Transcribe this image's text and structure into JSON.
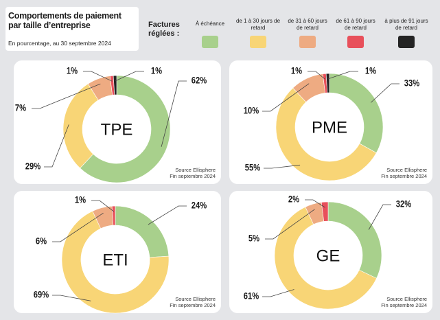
{
  "title": "Comportements de paiement par taille d’entreprise",
  "subtitle": "En pourcentage, au 30 septembre 2024",
  "legend": {
    "title": "Factures réglées :",
    "items": [
      {
        "name": "À échéance",
        "color": "#a8d08c"
      },
      {
        "name": "de 1 à 30 jours de retard",
        "color": "#f8d576"
      },
      {
        "name": "de 31 à 60 jours de retard",
        "color": "#eeab82"
      },
      {
        "name": "de 61 à 90 jours de retard",
        "color": "#e8505b"
      },
      {
        "name": "à plus de 91 jours de retard",
        "color": "#242424"
      }
    ]
  },
  "chart_data": [
    {
      "type": "donut",
      "center_label": "TPE",
      "values": [
        62,
        29,
        7,
        1,
        1
      ],
      "value_labels": [
        "62%",
        "29%",
        "7%",
        "1%",
        "1%"
      ],
      "source": "Source Ellisphere",
      "date": "Fin septembre 2024"
    },
    {
      "type": "donut",
      "center_label": "PME",
      "values": [
        33,
        55,
        10,
        1,
        1
      ],
      "value_labels": [
        "33%",
        "55%",
        "10%",
        "1%",
        "1%"
      ],
      "source": "Source Ellisphere",
      "date": "Fin septembre 2024"
    },
    {
      "type": "donut",
      "center_label": "ETI",
      "values": [
        24,
        69,
        6,
        1
      ],
      "value_labels": [
        "24%",
        "69%",
        "6%",
        "1%"
      ],
      "source": "Source Ellisphere",
      "date": "Fin septembre 2024"
    },
    {
      "type": "donut",
      "center_label": "GE",
      "values": [
        32,
        61,
        5,
        2
      ],
      "value_labels": [
        "32%",
        "61%",
        "5%",
        "2%"
      ],
      "source": "Source Ellisphere",
      "date": "Fin septembre 2024"
    }
  ]
}
